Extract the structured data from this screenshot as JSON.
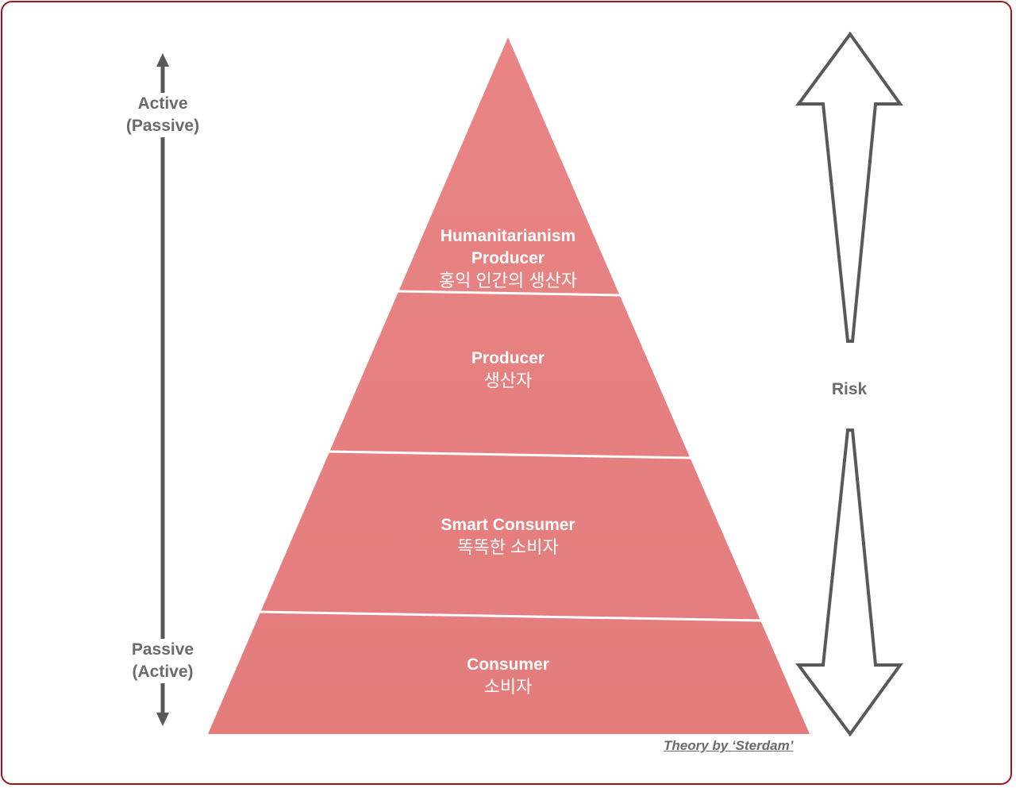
{
  "colors": {
    "pyramid": "#e88383",
    "frame": "#a0151c",
    "text_gray": "#6b6b6b",
    "arrow": "#595959"
  },
  "left_axis": {
    "top_label": "Active",
    "top_sub": "(Passive)",
    "bottom_label": "Passive",
    "bottom_sub": "(Active)"
  },
  "tiers": [
    {
      "en": "Humanitarianism",
      "en2": "Producer",
      "kr": "홍익 인간의 생산자"
    },
    {
      "en": "Producer",
      "kr": "생산자"
    },
    {
      "en": "Smart Consumer",
      "kr": "똑똑한 소비자"
    },
    {
      "en": "Consumer",
      "kr": "소비자"
    }
  ],
  "right_axis": {
    "label": "Risk"
  },
  "credit": "Theory by ‘Sterdam’"
}
